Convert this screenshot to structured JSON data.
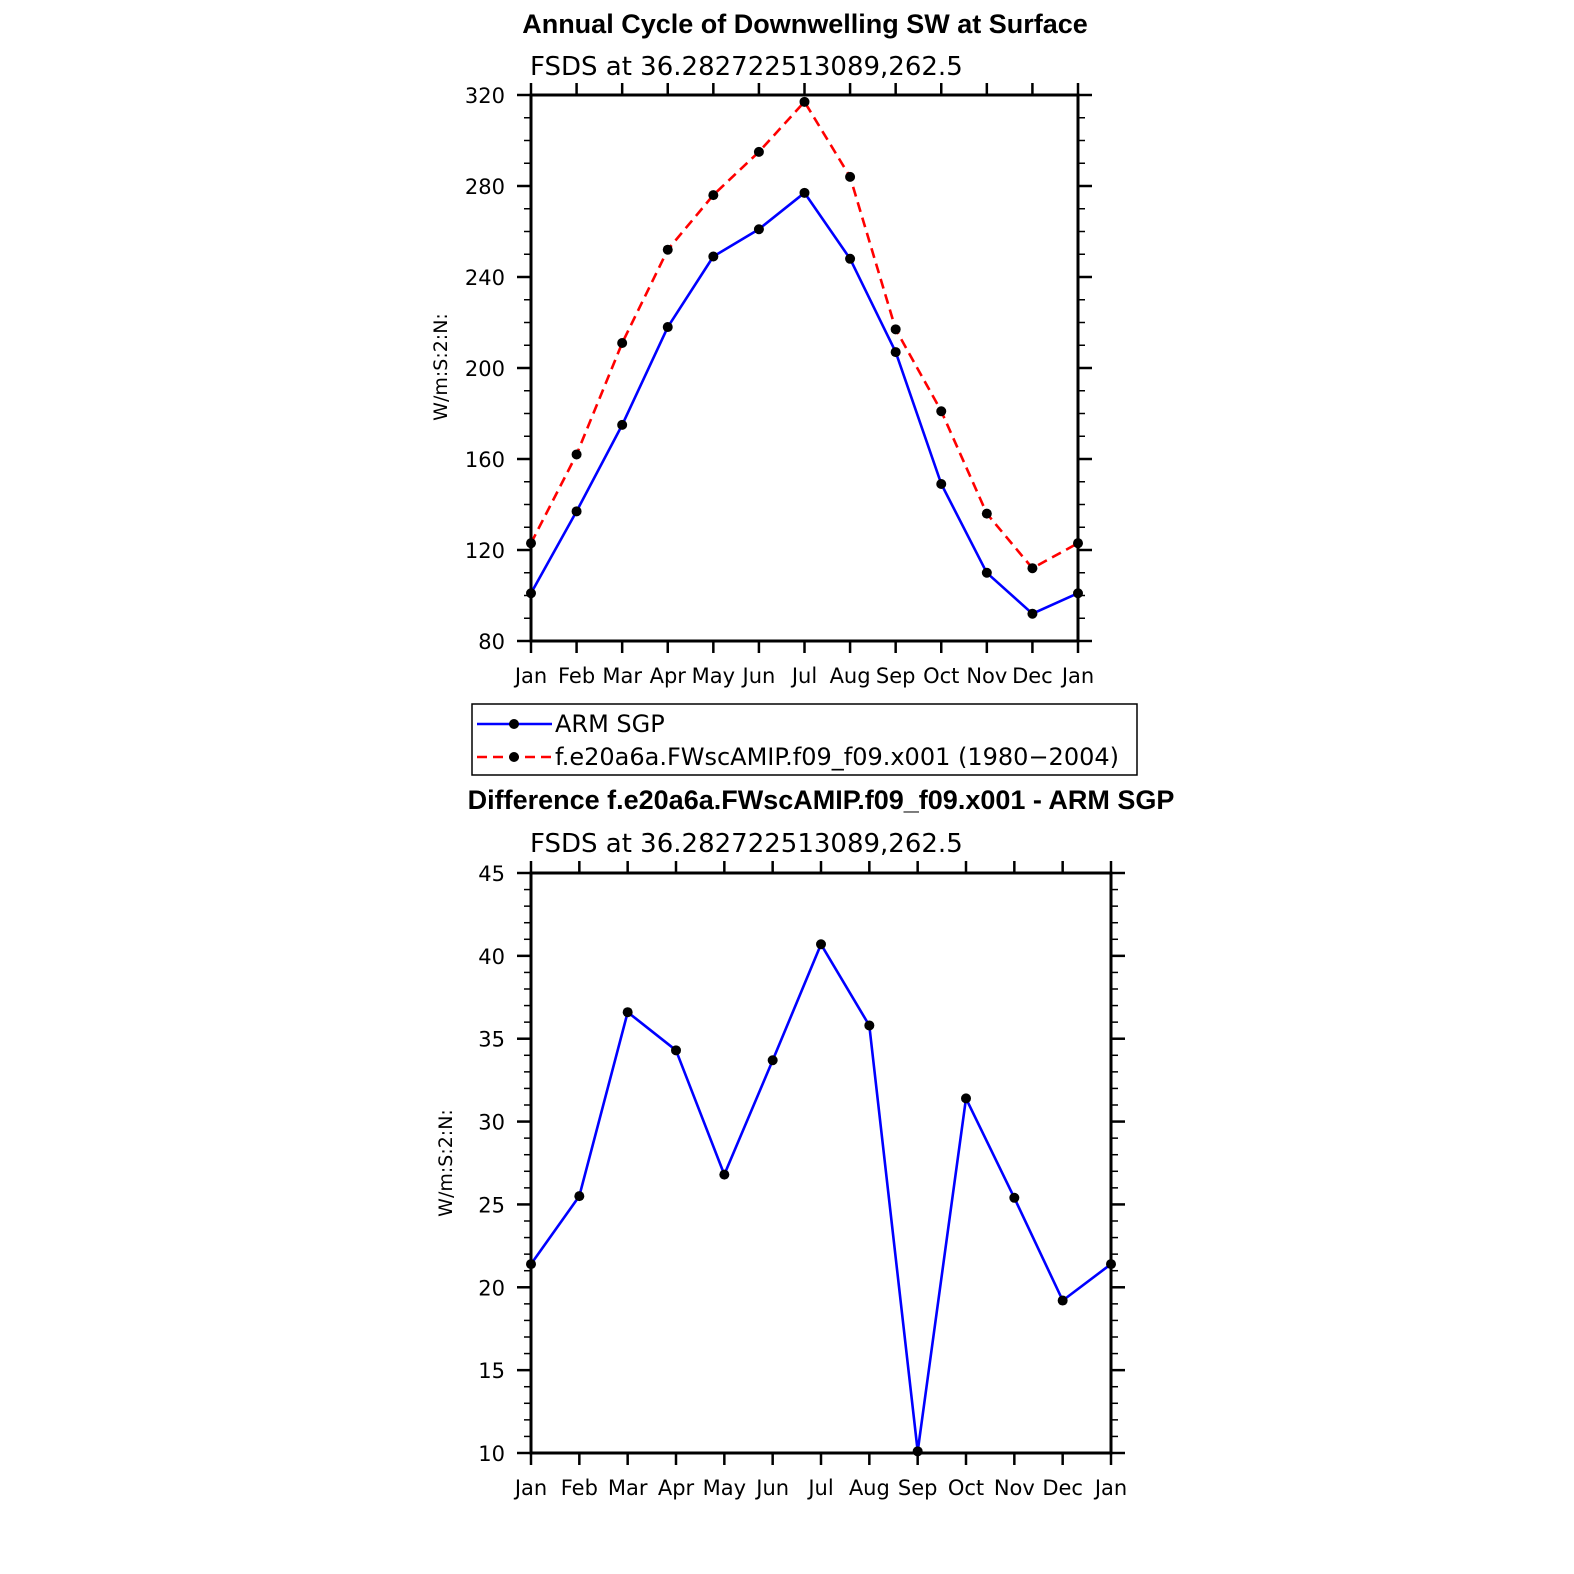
{
  "chart_data": [
    {
      "type": "line",
      "title": "Annual Cycle of Downwelling SW at Surface",
      "subtitle": "FSDS at 36.282722513089,262.5",
      "ylabel": "W/m:S:2:N:",
      "xlabel": "",
      "categories": [
        "Jan",
        "Feb",
        "Mar",
        "Apr",
        "May",
        "Jun",
        "Jul",
        "Aug",
        "Sep",
        "Oct",
        "Nov",
        "Dec",
        "Jan"
      ],
      "ylim": [
        80,
        320
      ],
      "yticks": [
        80,
        120,
        160,
        200,
        240,
        280,
        320
      ],
      "series": [
        {
          "name": "ARM SGP",
          "color": "#0000ff",
          "dash": "solid",
          "values": [
            101,
            137,
            175,
            218,
            249,
            261,
            277,
            248,
            207,
            149,
            110,
            92,
            101
          ]
        },
        {
          "name": "f.e20a6a.FWscAMIP.f09_f09.x001 (1980−2004)",
          "color": "#ff0000",
          "dash": "dashed",
          "values": [
            123,
            162,
            211,
            252,
            276,
            295,
            317,
            284,
            217,
            181,
            136,
            112,
            123
          ]
        }
      ],
      "legend": "bottom"
    },
    {
      "type": "line",
      "title": "Difference f.e20a6a.FWscAMIP.f09_f09.x001 - ARM SGP",
      "subtitle": "FSDS at 36.282722513089,262.5",
      "ylabel": "W/m:S:2:N:",
      "xlabel": "",
      "categories": [
        "Jan",
        "Feb",
        "Mar",
        "Apr",
        "May",
        "Jun",
        "Jul",
        "Aug",
        "Sep",
        "Oct",
        "Nov",
        "Dec",
        "Jan"
      ],
      "ylim": [
        10,
        45
      ],
      "yticks": [
        10,
        15,
        20,
        25,
        30,
        35,
        40,
        45
      ],
      "series": [
        {
          "name": "Difference",
          "color": "#0000ff",
          "dash": "solid",
          "values": [
            21.4,
            25.5,
            36.6,
            34.3,
            26.8,
            33.7,
            40.7,
            35.8,
            10.1,
            31.4,
            25.4,
            19.2,
            21.4
          ]
        }
      ]
    }
  ]
}
